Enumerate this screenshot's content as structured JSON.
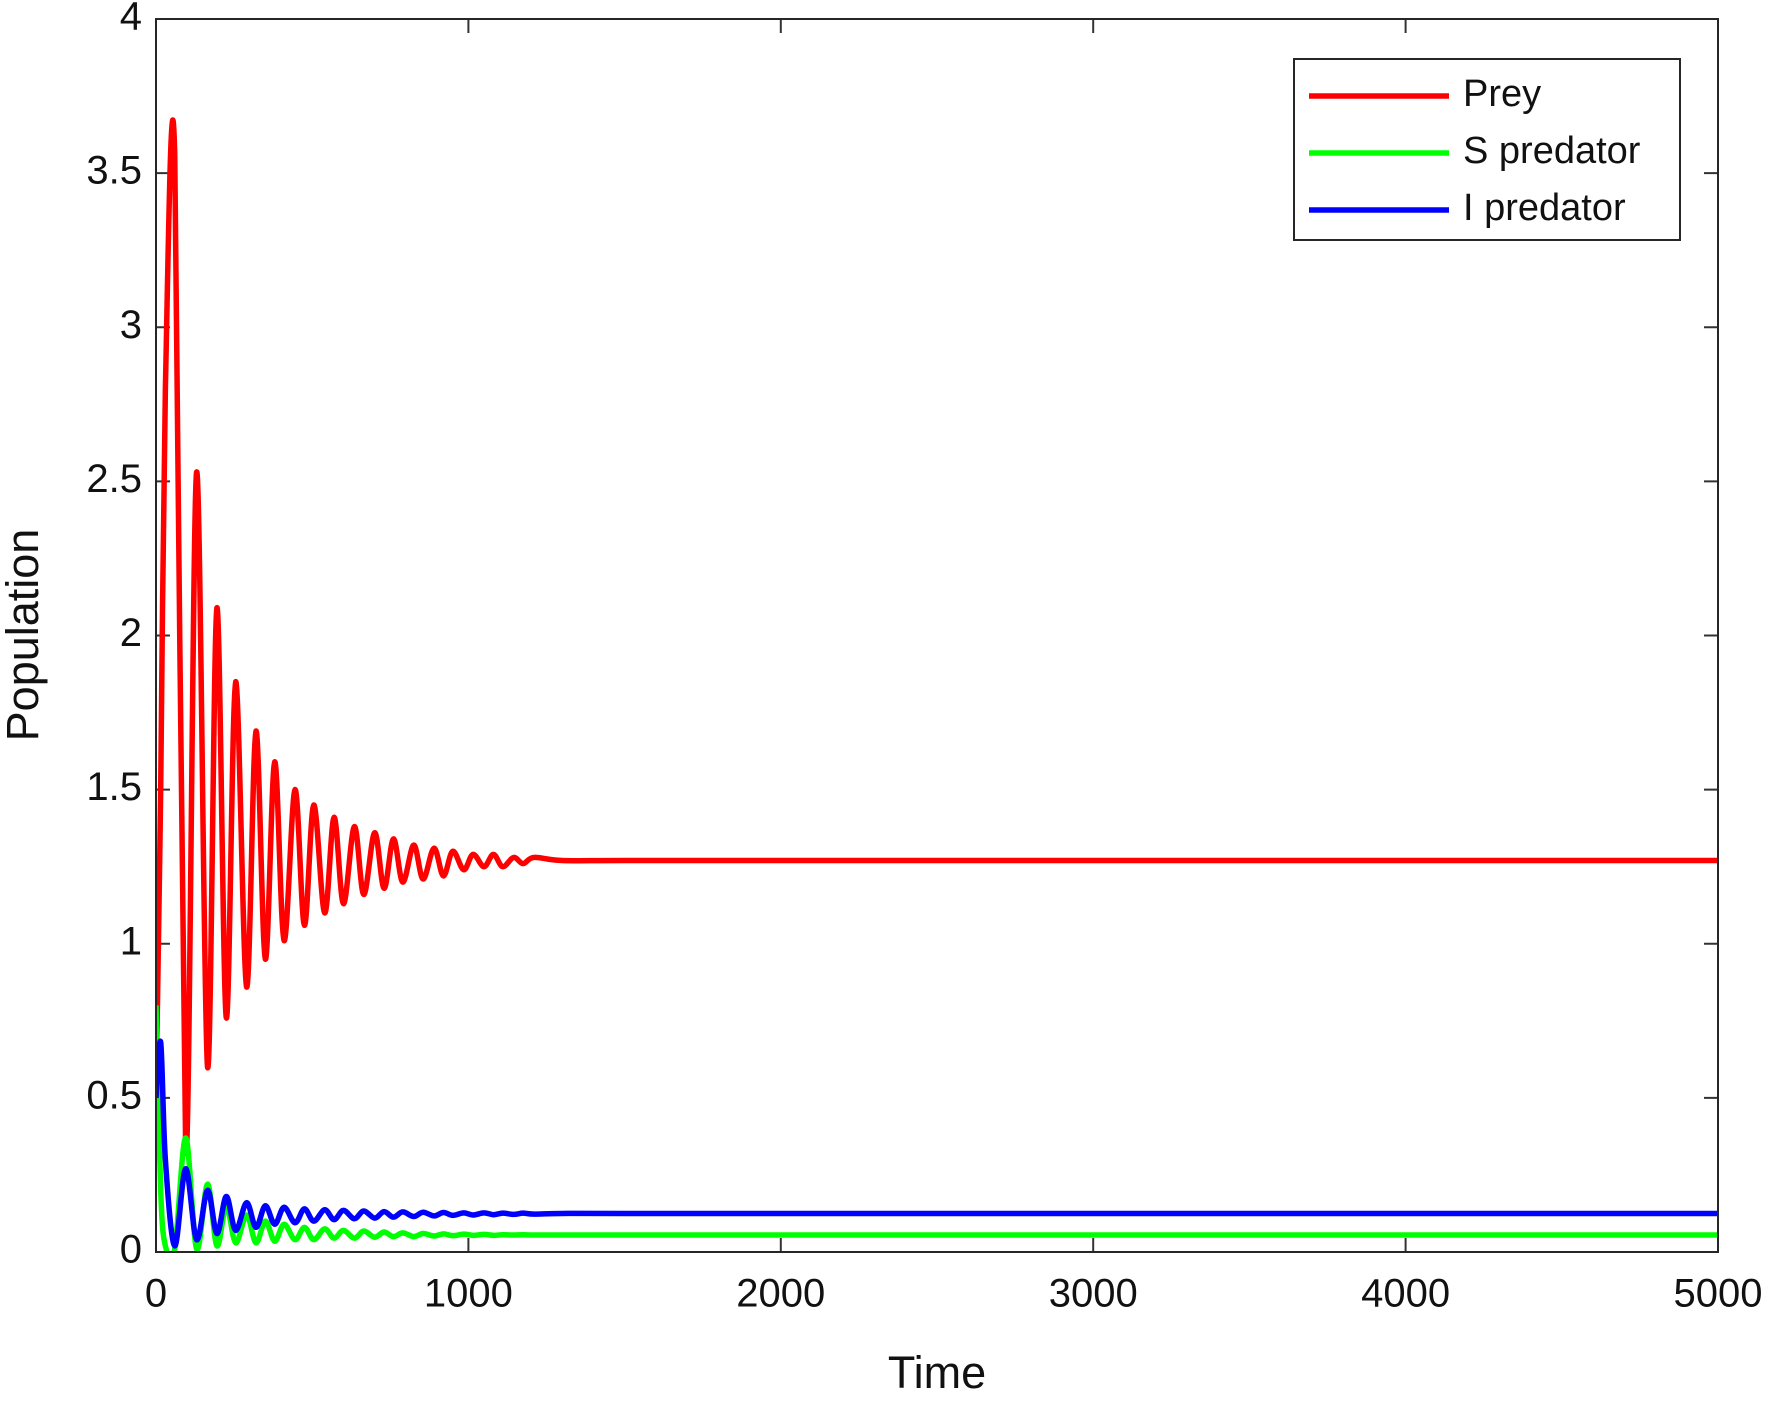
{
  "chart_data": {
    "type": "line",
    "x_label": "Time",
    "y_label": "Population",
    "x": [
      0,
      15,
      30,
      60,
      95,
      130,
      165,
      195,
      225,
      255,
      290,
      320,
      350,
      380,
      410,
      445,
      475,
      505,
      540,
      570,
      600,
      635,
      665,
      700,
      730,
      760,
      790,
      825,
      855,
      890,
      920,
      950,
      985,
      1015,
      1050,
      1080,
      1110,
      1145,
      1175,
      1210,
      1300,
      1500,
      2000,
      3000,
      4000,
      5000
    ],
    "series": [
      {
        "name": "Prey",
        "color": "#ff0000",
        "values": [
          0.5,
          1.5,
          2.8,
          3.56,
          0.33,
          2.53,
          0.6,
          2.09,
          0.76,
          1.85,
          0.86,
          1.69,
          0.95,
          1.59,
          1.01,
          1.5,
          1.06,
          1.45,
          1.1,
          1.41,
          1.13,
          1.38,
          1.16,
          1.36,
          1.18,
          1.34,
          1.2,
          1.32,
          1.21,
          1.31,
          1.22,
          1.3,
          1.24,
          1.29,
          1.25,
          1.29,
          1.25,
          1.28,
          1.26,
          1.28,
          1.27,
          1.27,
          1.27,
          1.27,
          1.27,
          1.27
        ]
      },
      {
        "name": "S predator",
        "color": "#00ff00",
        "values": [
          0.8,
          0.2,
          0.02,
          0.01,
          0.37,
          0.01,
          0.22,
          0.02,
          0.15,
          0.03,
          0.12,
          0.03,
          0.1,
          0.035,
          0.09,
          0.04,
          0.08,
          0.04,
          0.075,
          0.045,
          0.07,
          0.045,
          0.068,
          0.048,
          0.065,
          0.05,
          0.062,
          0.05,
          0.06,
          0.052,
          0.059,
          0.053,
          0.058,
          0.054,
          0.057,
          0.054,
          0.056,
          0.055,
          0.056,
          0.055,
          0.055,
          0.055,
          0.055,
          0.055,
          0.055,
          0.055
        ]
      },
      {
        "name": "I predator",
        "color": "#0000ff",
        "values": [
          0.5,
          0.68,
          0.3,
          0.02,
          0.27,
          0.04,
          0.2,
          0.06,
          0.18,
          0.07,
          0.16,
          0.08,
          0.15,
          0.09,
          0.145,
          0.095,
          0.14,
          0.1,
          0.137,
          0.105,
          0.135,
          0.108,
          0.133,
          0.11,
          0.131,
          0.113,
          0.13,
          0.115,
          0.129,
          0.117,
          0.128,
          0.119,
          0.127,
          0.12,
          0.127,
          0.121,
          0.126,
          0.122,
          0.126,
          0.123,
          0.125,
          0.125,
          0.125,
          0.125,
          0.125,
          0.125
        ]
      }
    ],
    "xlim": [
      0,
      5000
    ],
    "xticks": [
      0,
      1000,
      2000,
      3000,
      4000,
      5000
    ],
    "ylim": [
      0,
      4
    ],
    "yticks": [
      0,
      0.5,
      1,
      1.5,
      2,
      2.5,
      3,
      3.5,
      4
    ],
    "grid": false,
    "legend": "upper-right"
  }
}
